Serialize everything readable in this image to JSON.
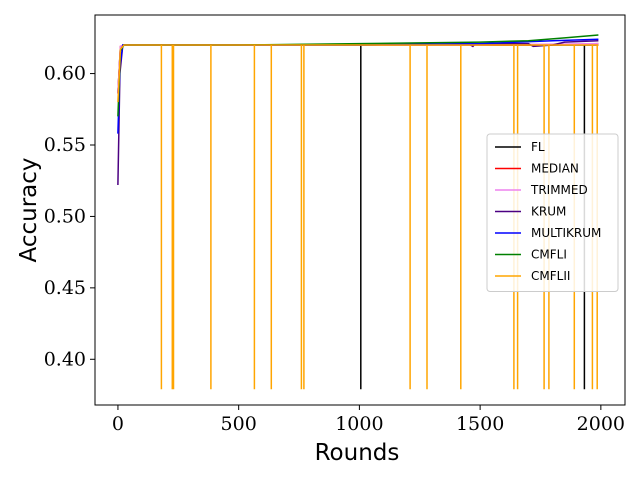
{
  "chart_data": {
    "type": "line",
    "xlabel": "Rounds",
    "ylabel": "Accuracy",
    "xlim": [
      -95,
      2100
    ],
    "ylim": [
      0.368,
      0.641
    ],
    "xticks": [
      0,
      500,
      1000,
      1500,
      2000
    ],
    "yticks": [
      0.4,
      0.45,
      0.5,
      0.55,
      0.6
    ],
    "xtick_labels": [
      "0",
      "500",
      "1000",
      "1500",
      "2000"
    ],
    "ytick_labels": [
      "0.40",
      "0.45",
      "0.50",
      "0.55",
      "0.60"
    ],
    "grid": false,
    "legend_position": "center-right",
    "series": [
      {
        "name": "FL",
        "color": "#000000",
        "points": [
          [
            0,
            0.586
          ],
          [
            10,
            0.618
          ],
          [
            25,
            0.62
          ],
          [
            1000,
            0.62
          ],
          [
            1500,
            0.62
          ],
          [
            1990,
            0.62
          ]
        ],
        "dips": [
          1006,
          1932
        ],
        "dip_to": 0.379
      },
      {
        "name": "MEDIAN",
        "color": "#ff0000",
        "points": [
          [
            0,
            0.586
          ],
          [
            10,
            0.619
          ],
          [
            25,
            0.62
          ],
          [
            1000,
            0.62
          ],
          [
            1500,
            0.62
          ],
          [
            1800,
            0.62
          ],
          [
            1990,
            0.621
          ]
        ],
        "dips": [],
        "dip_to": 0.379
      },
      {
        "name": "TRIMMED",
        "color": "#ee82ee",
        "points": [
          [
            0,
            0.586
          ],
          [
            10,
            0.619
          ],
          [
            25,
            0.62
          ],
          [
            1000,
            0.62
          ],
          [
            1500,
            0.62
          ],
          [
            1990,
            0.621
          ]
        ],
        "dips": [],
        "dip_to": 0.379
      },
      {
        "name": "KRUM",
        "color": "#4b0082",
        "points": [
          [
            0,
            0.522
          ],
          [
            8,
            0.6
          ],
          [
            20,
            0.62
          ],
          [
            500,
            0.62
          ],
          [
            1000,
            0.62
          ],
          [
            1450,
            0.621
          ],
          [
            1470,
            0.619
          ],
          [
            1480,
            0.621
          ],
          [
            1700,
            0.621
          ],
          [
            1720,
            0.619
          ],
          [
            1800,
            0.62
          ],
          [
            1850,
            0.622
          ],
          [
            1990,
            0.623
          ]
        ],
        "dips": [],
        "dip_to": 0.379
      },
      {
        "name": "MULTIKRUM",
        "color": "#0000ff",
        "points": [
          [
            0,
            0.558
          ],
          [
            8,
            0.605
          ],
          [
            20,
            0.62
          ],
          [
            500,
            0.62
          ],
          [
            1000,
            0.62
          ],
          [
            1500,
            0.621
          ],
          [
            1800,
            0.623
          ],
          [
            1990,
            0.624
          ]
        ],
        "dips": [],
        "dip_to": 0.379
      },
      {
        "name": "CMFLI",
        "color": "#008000",
        "points": [
          [
            0,
            0.57
          ],
          [
            10,
            0.616
          ],
          [
            25,
            0.62
          ],
          [
            500,
            0.62
          ],
          [
            1000,
            0.621
          ],
          [
            1500,
            0.622
          ],
          [
            1700,
            0.623
          ],
          [
            1850,
            0.625
          ],
          [
            1990,
            0.627
          ]
        ],
        "dips": [],
        "dip_to": 0.379
      },
      {
        "name": "CMFLII",
        "color": "#ffa500",
        "points": [
          [
            0,
            0.58
          ],
          [
            10,
            0.617
          ],
          [
            25,
            0.62
          ],
          [
            1000,
            0.62
          ],
          [
            1500,
            0.62
          ],
          [
            1990,
            0.62
          ]
        ],
        "dips": [
          180,
          225,
          230,
          385,
          565,
          635,
          760,
          770,
          1210,
          1280,
          1420,
          1640,
          1655,
          1765,
          1785,
          1890,
          1965,
          1985
        ],
        "dip_to": 0.379
      }
    ]
  }
}
